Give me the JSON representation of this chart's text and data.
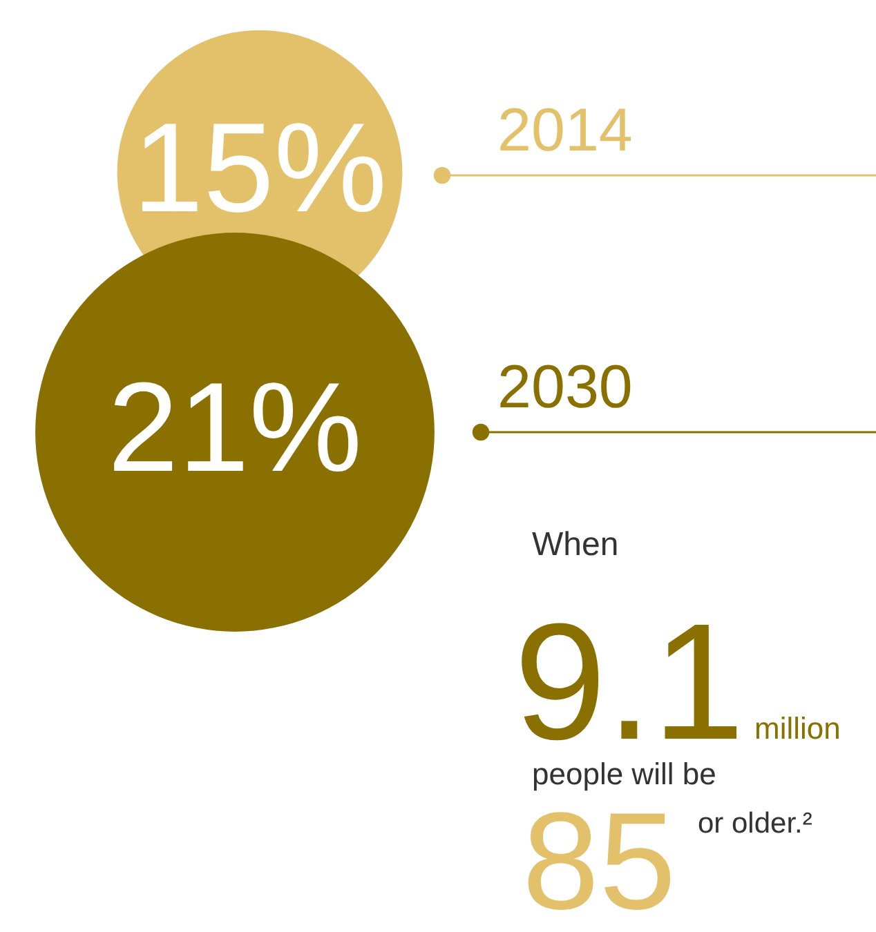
{
  "chart_data": {
    "type": "other",
    "categories": [
      "2014",
      "2030"
    ],
    "values": [
      15,
      21
    ],
    "colors": [
      "#e2c16a",
      "#8a7000"
    ],
    "value_labels": [
      "15%",
      "21%"
    ],
    "annotations": [
      "When",
      "9.1",
      "million",
      "people will be",
      "85",
      "or older.²"
    ]
  }
}
